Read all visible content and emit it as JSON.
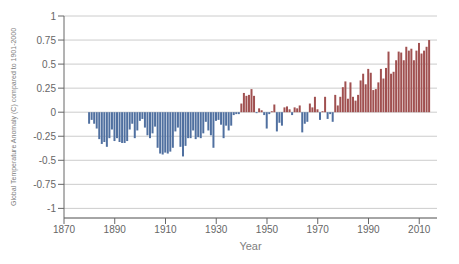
{
  "chart_data": {
    "type": "bar",
    "xlabel": "Year",
    "ylabel": "Global Temperature Anomaly (C) compared to 1901-2000",
    "x": [
      1880,
      1881,
      1882,
      1883,
      1884,
      1885,
      1886,
      1887,
      1888,
      1889,
      1890,
      1891,
      1892,
      1893,
      1894,
      1895,
      1896,
      1897,
      1898,
      1899,
      1900,
      1901,
      1902,
      1903,
      1904,
      1905,
      1906,
      1907,
      1908,
      1909,
      1910,
      1911,
      1912,
      1913,
      1914,
      1915,
      1916,
      1917,
      1918,
      1919,
      1920,
      1921,
      1922,
      1923,
      1924,
      1925,
      1926,
      1927,
      1928,
      1929,
      1930,
      1931,
      1932,
      1933,
      1934,
      1935,
      1936,
      1937,
      1938,
      1939,
      1940,
      1941,
      1942,
      1943,
      1944,
      1945,
      1946,
      1947,
      1948,
      1949,
      1950,
      1951,
      1952,
      1953,
      1954,
      1955,
      1956,
      1957,
      1958,
      1959,
      1960,
      1961,
      1962,
      1963,
      1964,
      1965,
      1966,
      1967,
      1968,
      1969,
      1970,
      1971,
      1972,
      1973,
      1974,
      1975,
      1976,
      1977,
      1978,
      1979,
      1980,
      1981,
      1982,
      1983,
      1984,
      1985,
      1986,
      1987,
      1988,
      1989,
      1990,
      1991,
      1992,
      1993,
      1994,
      1995,
      1996,
      1997,
      1998,
      1999,
      2000,
      2001,
      2002,
      2003,
      2004,
      2005,
      2006,
      2007,
      2008,
      2009,
      2010,
      2011,
      2012,
      2013,
      2014
    ],
    "values": [
      -0.12,
      -0.08,
      -0.12,
      -0.17,
      -0.28,
      -0.33,
      -0.31,
      -0.36,
      -0.27,
      -0.18,
      -0.3,
      -0.27,
      -0.31,
      -0.32,
      -0.32,
      -0.3,
      -0.18,
      -0.12,
      -0.27,
      -0.19,
      -0.09,
      -0.07,
      -0.16,
      -0.24,
      -0.27,
      -0.22,
      -0.15,
      -0.37,
      -0.43,
      -0.44,
      -0.42,
      -0.43,
      -0.41,
      -0.37,
      -0.2,
      -0.16,
      -0.36,
      -0.46,
      -0.35,
      -0.27,
      -0.27,
      -0.19,
      -0.28,
      -0.26,
      -0.27,
      -0.22,
      -0.1,
      -0.19,
      -0.24,
      -0.37,
      -0.09,
      -0.08,
      -0.13,
      -0.27,
      -0.14,
      -0.19,
      -0.14,
      -0.03,
      -0.02,
      -0.02,
      0.09,
      0.2,
      0.17,
      0.18,
      0.24,
      0.17,
      -0.01,
      0.04,
      0.02,
      -0.03,
      -0.17,
      -0.02,
      0.01,
      0.08,
      -0.2,
      -0.11,
      -0.14,
      0.05,
      0.06,
      0.03,
      -0.03,
      0.05,
      0.04,
      0.07,
      -0.21,
      -0.12,
      -0.1,
      0.09,
      0.05,
      0.16,
      0.03,
      -0.08,
      0.01,
      0.16,
      -0.07,
      -0.02,
      -0.1,
      0.18,
      0.07,
      0.16,
      0.26,
      0.32,
      0.14,
      0.31,
      0.16,
      0.12,
      0.18,
      0.33,
      0.4,
      0.29,
      0.45,
      0.41,
      0.23,
      0.24,
      0.31,
      0.45,
      0.35,
      0.46,
      0.63,
      0.4,
      0.42,
      0.54,
      0.63,
      0.62,
      0.54,
      0.68,
      0.64,
      0.66,
      0.54,
      0.64,
      0.72,
      0.61,
      0.64,
      0.68,
      0.75
    ],
    "colors": [
      "#5070a0",
      "#5070a0",
      "#5070a0",
      "#5070a0",
      "#5070a0",
      "#5070a0",
      "#5070a0",
      "#5070a0",
      "#5070a0",
      "#5070a0",
      "#5070a0",
      "#5070a0",
      "#5070a0",
      "#5070a0",
      "#5070a0",
      "#5070a0",
      "#5070a0",
      "#5070a0",
      "#5070a0",
      "#5070a0",
      "#5070a0",
      "#5070a0",
      "#5070a0",
      "#5070a0",
      "#5070a0",
      "#5070a0",
      "#5070a0",
      "#5070a0",
      "#5070a0",
      "#5070a0",
      "#5070a0",
      "#5070a0",
      "#5070a0",
      "#5070a0",
      "#5070a0",
      "#5070a0",
      "#5070a0",
      "#5070a0",
      "#5070a0",
      "#5070a0",
      "#5070a0",
      "#5070a0",
      "#5070a0",
      "#5070a0",
      "#5070a0",
      "#5070a0",
      "#5070a0",
      "#5070a0",
      "#5070a0",
      "#5070a0",
      "#5070a0",
      "#5070a0",
      "#5070a0",
      "#5070a0",
      "#5070a0",
      "#5070a0",
      "#5070a0",
      "#5070a0",
      "#5070a0",
      "#5070a0",
      "#a05050",
      "#a05050",
      "#a05050",
      "#a05050",
      "#a05050",
      "#a05050",
      "#5070a0",
      "#a05050",
      "#a05050",
      "#5070a0",
      "#5070a0",
      "#5070a0",
      "#a05050",
      "#a05050",
      "#5070a0",
      "#5070a0",
      "#5070a0",
      "#a05050",
      "#a05050",
      "#a05050",
      "#5070a0",
      "#a05050",
      "#a05050",
      "#a05050",
      "#5070a0",
      "#5070a0",
      "#5070a0",
      "#a05050",
      "#a05050",
      "#a05050",
      "#a05050",
      "#5070a0",
      "#a05050",
      "#a05050",
      "#5070a0",
      "#5070a0",
      "#5070a0",
      "#a05050",
      "#a05050",
      "#a05050",
      "#a05050",
      "#a05050",
      "#a05050",
      "#a05050",
      "#a05050",
      "#a05050",
      "#a05050",
      "#a05050",
      "#a05050",
      "#a05050",
      "#a05050",
      "#a05050",
      "#a05050",
      "#a05050",
      "#a05050",
      "#a05050",
      "#a05050",
      "#a05050",
      "#a05050",
      "#a05050",
      "#a05050",
      "#a05050",
      "#a05050",
      "#a05050",
      "#a05050",
      "#a05050",
      "#a05050",
      "#a05050",
      "#a05050",
      "#a05050",
      "#a05050",
      "#a05050",
      "#a05050",
      "#a05050",
      "#a05050"
    ],
    "xlim": [
      1870,
      2017
    ],
    "xticks": [
      1870,
      1890,
      1910,
      1930,
      1950,
      1970,
      1990,
      2010
    ],
    "ylim": [
      -1.1,
      1.0
    ],
    "yticks": [
      -1,
      -0.75,
      -0.5,
      -0.25,
      0,
      0.25,
      0.5,
      0.75,
      1
    ],
    "grid": true
  }
}
